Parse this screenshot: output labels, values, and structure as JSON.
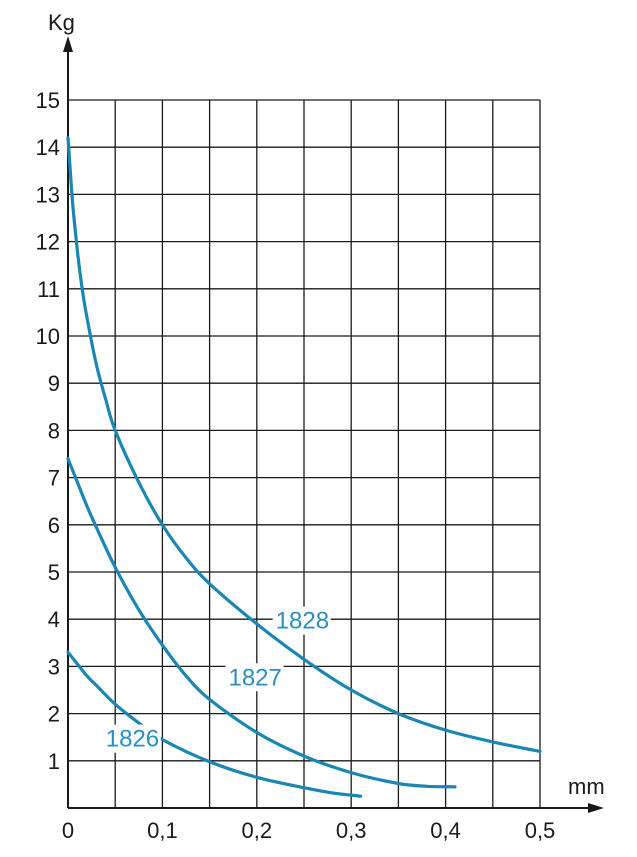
{
  "chart_data": {
    "type": "line",
    "xlabel": "mm",
    "ylabel": "Kg",
    "xlim": [
      0,
      0.5
    ],
    "ylim": [
      0,
      15
    ],
    "x_step": 0.05,
    "y_step": 1,
    "x_ticks": [
      {
        "value": 0,
        "label": "0"
      },
      {
        "value": 0.1,
        "label": "0,1"
      },
      {
        "value": 0.2,
        "label": "0,2"
      },
      {
        "value": 0.3,
        "label": "0,3"
      },
      {
        "value": 0.4,
        "label": "0,4"
      },
      {
        "value": 0.5,
        "label": "0,5"
      }
    ],
    "y_ticks": [
      {
        "value": 1,
        "label": "1"
      },
      {
        "value": 2,
        "label": "2"
      },
      {
        "value": 3,
        "label": "3"
      },
      {
        "value": 4,
        "label": "4"
      },
      {
        "value": 5,
        "label": "5"
      },
      {
        "value": 6,
        "label": "6"
      },
      {
        "value": 7,
        "label": "7"
      },
      {
        "value": 8,
        "label": "8"
      },
      {
        "value": 9,
        "label": "9"
      },
      {
        "value": 10,
        "label": "10"
      },
      {
        "value": 11,
        "label": "11"
      },
      {
        "value": 12,
        "label": "12"
      },
      {
        "value": 13,
        "label": "13"
      },
      {
        "value": 14,
        "label": "14"
      },
      {
        "value": 15,
        "label": "15"
      }
    ],
    "grid": true,
    "curve_color": "#1a86b3",
    "label_color": "#2a8fc0",
    "series": [
      {
        "name": "1826",
        "label_at": [
          0.04,
          1.3
        ],
        "x": [
          0,
          0.01,
          0.02,
          0.03,
          0.05,
          0.075,
          0.1,
          0.15,
          0.2,
          0.25,
          0.28,
          0.31
        ],
        "y": [
          3.3,
          3.05,
          2.8,
          2.6,
          2.2,
          1.8,
          1.45,
          0.98,
          0.65,
          0.43,
          0.32,
          0.25
        ]
      },
      {
        "name": "1827",
        "label_at": [
          0.17,
          2.6
        ],
        "x": [
          0,
          0.01,
          0.02,
          0.03,
          0.05,
          0.075,
          0.1,
          0.125,
          0.15,
          0.2,
          0.25,
          0.3,
          0.35,
          0.38,
          0.41
        ],
        "y": [
          7.4,
          6.9,
          6.4,
          5.95,
          5.1,
          4.2,
          3.45,
          2.8,
          2.3,
          1.6,
          1.1,
          0.75,
          0.52,
          0.46,
          0.45
        ]
      },
      {
        "name": "1828",
        "label_at": [
          0.22,
          3.8
        ],
        "x": [
          0,
          0.005,
          0.01,
          0.015,
          0.02,
          0.03,
          0.04,
          0.05,
          0.075,
          0.1,
          0.125,
          0.15,
          0.2,
          0.25,
          0.3,
          0.35,
          0.4,
          0.45,
          0.5
        ],
        "y": [
          14.2,
          12.8,
          11.8,
          11.0,
          10.4,
          9.4,
          8.65,
          8.0,
          6.9,
          6.0,
          5.3,
          4.75,
          3.9,
          3.15,
          2.5,
          2.0,
          1.65,
          1.4,
          1.2
        ]
      }
    ]
  }
}
